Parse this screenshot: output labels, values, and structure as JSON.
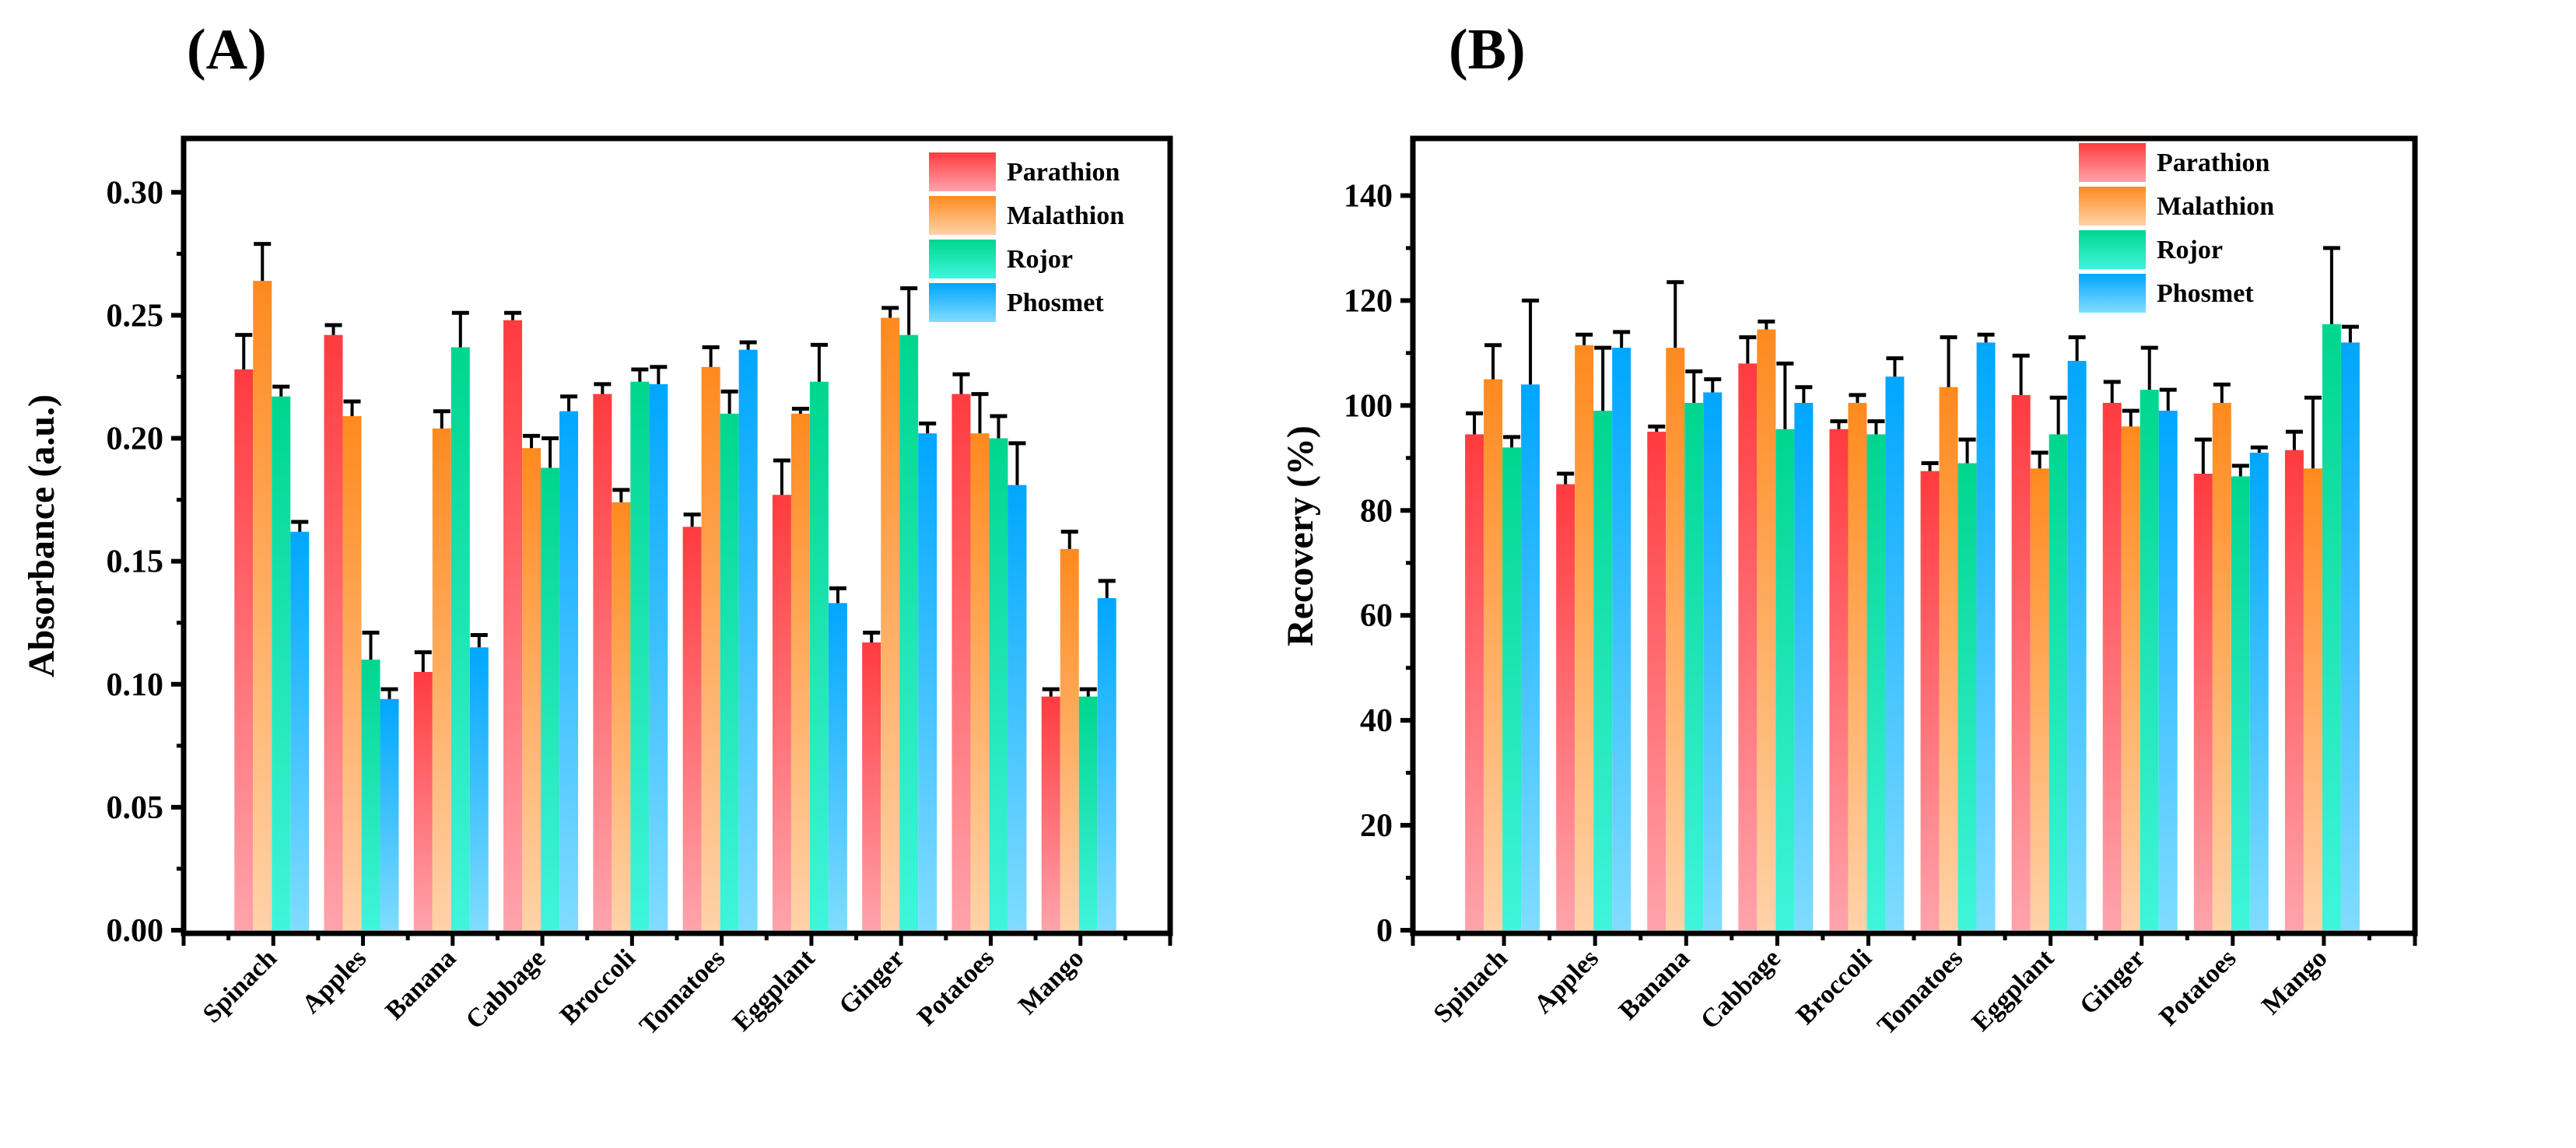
{
  "chart_data": [
    {
      "panel_label": "(A)",
      "type": "bar",
      "ylabel": "Absorbance (a.u.)",
      "xlabel": "",
      "ylim": [
        0,
        0.32
      ],
      "yticks": [
        "0.00",
        "0.05",
        "0.10",
        "0.15",
        "0.20",
        "0.25",
        "0.30"
      ],
      "ytick_values": [
        0,
        0.05,
        0.1,
        0.15,
        0.2,
        0.25,
        0.3
      ],
      "legend_position": "top-right",
      "categories": [
        "Spinach",
        "Apples",
        "Banana",
        "Cabbage",
        "Broccoli",
        "Tomatoes",
        "Eggplant",
        "Ginger",
        "Potatoes",
        "Mango"
      ],
      "series": [
        {
          "name": "Parathion",
          "color": "#ff3b3f",
          "light": "#ffa3ab",
          "values": [
            0.228,
            0.242,
            0.105,
            0.248,
            0.218,
            0.164,
            0.177,
            0.117,
            0.218,
            0.095
          ],
          "errors": [
            0.014,
            0.004,
            0.008,
            0.003,
            0.004,
            0.005,
            0.014,
            0.004,
            0.008,
            0.003
          ]
        },
        {
          "name": "Malathion",
          "color": "#ff8a1e",
          "light": "#ffd2a8",
          "values": [
            0.264,
            0.209,
            0.204,
            0.196,
            0.174,
            0.229,
            0.21,
            0.249,
            0.202,
            0.155
          ],
          "errors": [
            0.015,
            0.006,
            0.007,
            0.005,
            0.005,
            0.008,
            0.002,
            0.004,
            0.016,
            0.007
          ]
        },
        {
          "name": "Rojor",
          "color": "#00d68e",
          "light": "#3ff5dc",
          "values": [
            0.217,
            0.11,
            0.237,
            0.188,
            0.223,
            0.21,
            0.223,
            0.242,
            0.2,
            0.095
          ],
          "errors": [
            0.004,
            0.011,
            0.014,
            0.012,
            0.005,
            0.009,
            0.015,
            0.019,
            0.009,
            0.003
          ]
        },
        {
          "name": "Phosmet",
          "color": "#00a6ff",
          "light": "#80dcff",
          "values": [
            0.162,
            0.094,
            0.115,
            0.211,
            0.222,
            0.236,
            0.133,
            0.202,
            0.181,
            0.135
          ],
          "errors": [
            0.004,
            0.004,
            0.005,
            0.006,
            0.007,
            0.003,
            0.006,
            0.004,
            0.017,
            0.007
          ]
        }
      ]
    },
    {
      "panel_label": "(B)",
      "type": "bar",
      "ylabel": "Recovery (%)",
      "xlabel": "",
      "ylim": [
        0,
        150
      ],
      "yticks": [
        "0",
        "20",
        "40",
        "60",
        "80",
        "100",
        "120",
        "140"
      ],
      "ytick_values": [
        0,
        20,
        40,
        60,
        80,
        100,
        120,
        140
      ],
      "legend_position": "top-right",
      "categories": [
        "Spinach",
        "Apples",
        "Banana",
        "Cabbage",
        "Broccoli",
        "Tomatoes",
        "Eggplant",
        "Ginger",
        "Potatoes",
        "Mango"
      ],
      "series": [
        {
          "name": "Parathion",
          "color": "#ff3b3f",
          "light": "#ffa3ab",
          "values": [
            94.5,
            85,
            95,
            108,
            95.5,
            87.5,
            102,
            100.5,
            87,
            91.5
          ],
          "errors": [
            4,
            2,
            1,
            5,
            1.5,
            1.5,
            7.5,
            4,
            6.5,
            3.5
          ]
        },
        {
          "name": "Malathion",
          "color": "#ff8a1e",
          "light": "#ffd2a8",
          "values": [
            105,
            111.5,
            111,
            114.5,
            100.5,
            103.5,
            88,
            96,
            100.5,
            88
          ],
          "errors": [
            6.5,
            2,
            12.5,
            1.5,
            1.5,
            9.5,
            3,
            3,
            3.5,
            13.5
          ]
        },
        {
          "name": "Rojor",
          "color": "#00d68e",
          "light": "#3ff5dc",
          "values": [
            92,
            99,
            100.5,
            95.5,
            94.5,
            89,
            94.5,
            103,
            86.5,
            115.5
          ],
          "errors": [
            2,
            12,
            6,
            12.5,
            2.5,
            4.5,
            7,
            8,
            2,
            14.5
          ]
        },
        {
          "name": "Phosmet",
          "color": "#00a6ff",
          "light": "#80dcff",
          "values": [
            104,
            111,
            102.5,
            100.5,
            105.5,
            112,
            108.5,
            99,
            91,
            112
          ],
          "errors": [
            16,
            3,
            2.5,
            3,
            3.5,
            1.5,
            4.5,
            4,
            1,
            3
          ]
        }
      ]
    }
  ]
}
